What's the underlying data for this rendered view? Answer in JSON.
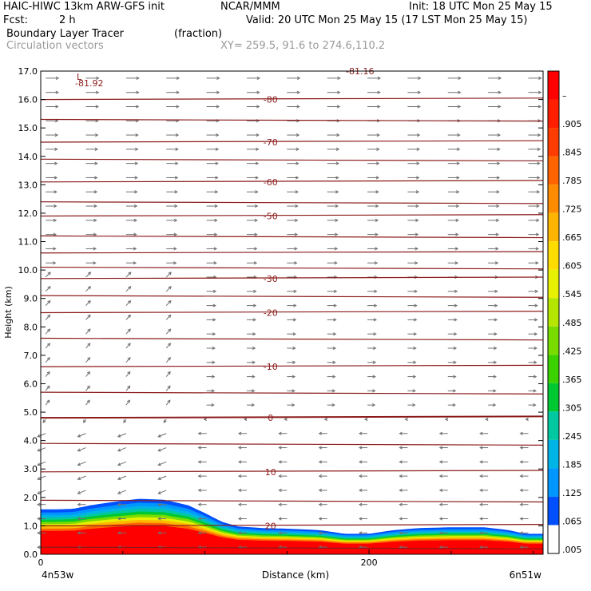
{
  "header": {
    "model": "HAIC-HIWC 13km ARW-GFS init",
    "org": "NCAR/MMM",
    "init": "Init: 18 UTC Mon 25 May 15",
    "fcst_label": "Fcst:",
    "fcst_value": "2 h",
    "valid": "Valid: 20 UTC Mon 25 May 15 (17 LST Mon 25 May 15)",
    "field_name": "Boundary Layer Tracer",
    "field_units": "(fraction)",
    "overlay_name": "Circulation vectors",
    "xy_range": "XY= 259.5, 91.6 to 274.6,110.2"
  },
  "chart_data": {
    "type": "heatmap",
    "ylabel": "Height (km)",
    "xlabel": "Distance (km)",
    "ylim": [
      0,
      17
    ],
    "xlim": [
      0,
      306
    ],
    "y_ticks": [
      "0.0",
      "1.0",
      "2.0",
      "3.0",
      "4.0",
      "5.0",
      "6.0",
      "7.0",
      "8.0",
      "9.0",
      "10.0",
      "11.0",
      "12.0",
      "13.0",
      "14.0",
      "15.0",
      "16.0",
      "17.0"
    ],
    "x_ticks": [
      {
        "value": 0,
        "label": "0"
      },
      {
        "value": 200,
        "label": "200"
      }
    ],
    "x_end_labels": {
      "left": "4n53w",
      "right": "6n51w"
    },
    "colorbar": {
      "labels": [
        "–",
        ".905",
        ".845",
        ".785",
        ".725",
        ".665",
        ".605",
        ".545",
        ".485",
        ".425",
        ".365",
        ".305",
        ".245",
        ".185",
        ".125",
        ".065",
        ".005"
      ],
      "colors": [
        "#ff0000",
        "#ff1e00",
        "#ff3c00",
        "#ff6400",
        "#ff8c00",
        "#ffb400",
        "#ffdc00",
        "#e6f000",
        "#b4e600",
        "#78dc00",
        "#3cd200",
        "#00c832",
        "#00c8a0",
        "#00b4e6",
        "#0096ff",
        "#0050ff",
        "#ffffff"
      ]
    },
    "temperature_contours": [
      {
        "label": "-80",
        "z": 16.0
      },
      {
        "label": "-70",
        "z": 14.5
      },
      {
        "label": "-60",
        "z": 13.1
      },
      {
        "label": "-50",
        "z": 11.9
      },
      {
        "label": "-30",
        "z": 9.7
      },
      {
        "label": "-20",
        "z": 8.5
      },
      {
        "label": "-10",
        "z": 6.6
      },
      {
        "label": "0",
        "z": 4.8
      },
      {
        "label": "10",
        "z": 2.9
      },
      {
        "label": "20",
        "z": 1.0
      }
    ],
    "extra_labels": {
      "low_marker": "L",
      "min_value": "-81.92",
      "top_value": "-81.16"
    },
    "tracer_top_km": [
      [
        0,
        1.58
      ],
      [
        10,
        1.58
      ],
      [
        20,
        1.6
      ],
      [
        30,
        1.72
      ],
      [
        45,
        1.85
      ],
      [
        60,
        1.95
      ],
      [
        75,
        1.92
      ],
      [
        90,
        1.72
      ],
      [
        100,
        1.45
      ],
      [
        110,
        1.15
      ],
      [
        120,
        0.98
      ],
      [
        135,
        0.92
      ],
      [
        150,
        0.9
      ],
      [
        170,
        0.85
      ],
      [
        185,
        0.72
      ],
      [
        200,
        0.72
      ],
      [
        215,
        0.85
      ],
      [
        230,
        0.92
      ],
      [
        250,
        0.95
      ],
      [
        270,
        0.95
      ],
      [
        285,
        0.85
      ],
      [
        295,
        0.72
      ],
      [
        306,
        0.72
      ]
    ]
  }
}
